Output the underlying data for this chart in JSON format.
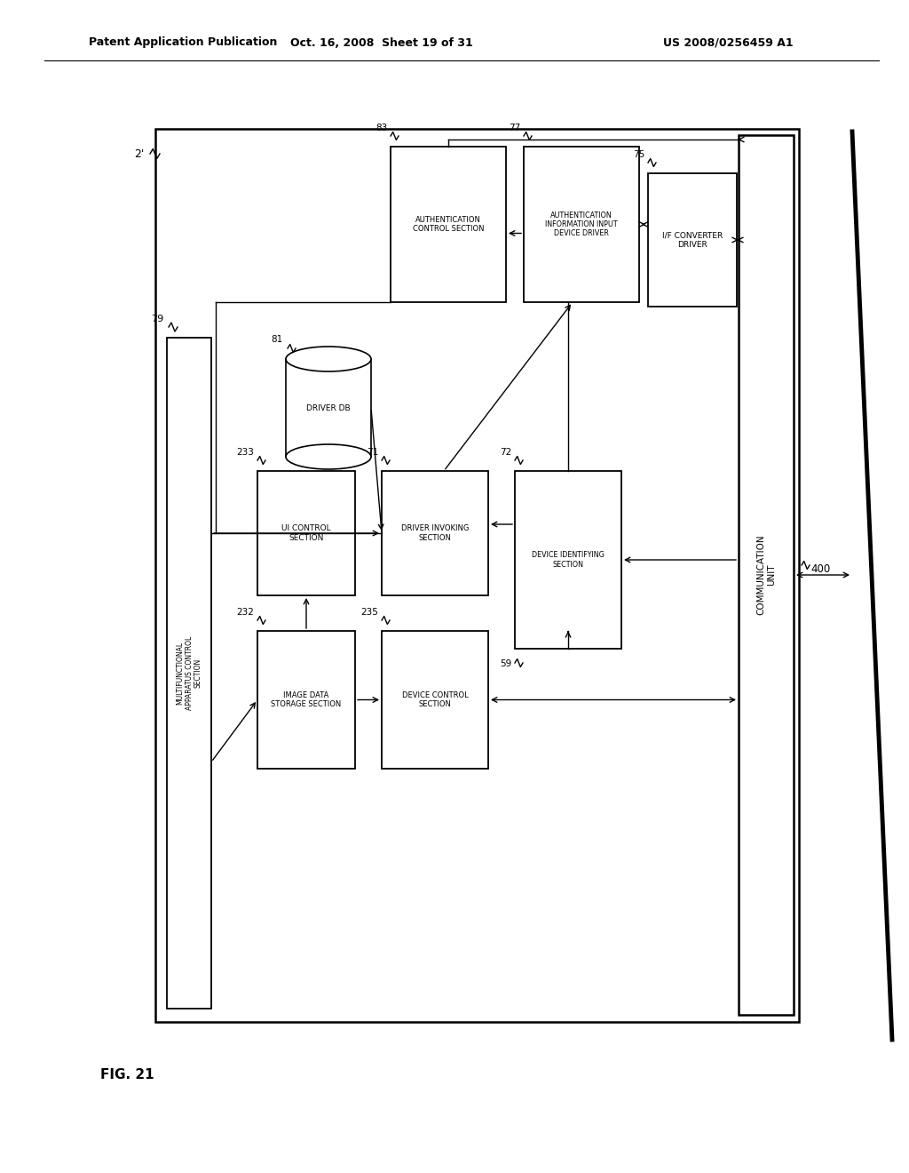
{
  "header_left": "Patent Application Publication",
  "header_mid": "Oct. 16, 2008  Sheet 19 of 31",
  "header_right": "US 2008/0256459 A1",
  "fig_label": "FIG. 21",
  "bg_color": "#ffffff"
}
